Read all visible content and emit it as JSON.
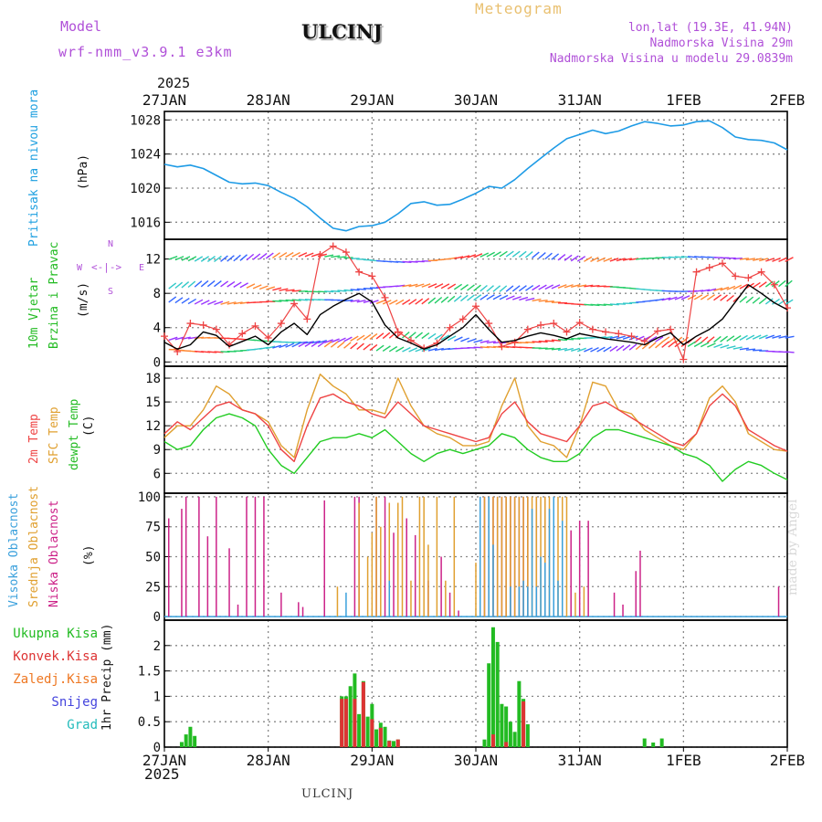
{
  "header": {
    "model_label": "Model",
    "model_name": "wrf-nmm_v3.9.1 e3km",
    "station": "ULCINJ",
    "title": "Meteogram",
    "lonlat": "lon,lat (19.3E, 41.94N)",
    "elevation": "Nadmorska Visina 29m",
    "model_elevation": "Nadmorska Visina u modelu 29.0839m"
  },
  "footer": {
    "station": "ULCINJ",
    "credit": "made by Angel"
  },
  "time_axis": {
    "year": "2025",
    "dates": [
      "27JAN",
      "28JAN",
      "29JAN",
      "30JAN",
      "31JAN",
      "1FEB",
      "2FEB"
    ],
    "range_hours": [
      0,
      144
    ]
  },
  "wind_compass": {
    "n": "N",
    "s": "S",
    "e": "E",
    "w": "W"
  },
  "colors": {
    "pressure": "#1e9be6",
    "wind_speed": "#000000",
    "gust": "#ee4444",
    "temp2m": "#ee4444",
    "sfc_temp": "#e0a030",
    "dewpt": "#22cc22",
    "cloud_high": "#3aa0dc",
    "cloud_mid": "#e0a030",
    "cloud_low": "#cc2288",
    "precip_total": "#22bb22",
    "precip_conv": "#dd3333",
    "precip_frozen": "#ee7722",
    "snow": "#4444dd",
    "graupel": "#22bbbb",
    "grid": "#888888"
  },
  "chart_data": [
    {
      "type": "line",
      "panel": "pressure",
      "ylabel_side": "Pritisak na nivou mora",
      "unit": "(hPa)",
      "ylim": [
        1014,
        1029
      ],
      "yticks": [
        1016,
        1020,
        1024,
        1028
      ],
      "series": [
        {
          "name": "Pritisak na nivou mora",
          "x": [
            0,
            3,
            6,
            9,
            12,
            15,
            18,
            21,
            24,
            27,
            30,
            33,
            36,
            39,
            42,
            45,
            48,
            51,
            54,
            57,
            60,
            63,
            66,
            69,
            72,
            75,
            78,
            81,
            84,
            87,
            90,
            93,
            96,
            99,
            102,
            105,
            108,
            111,
            114,
            117,
            120,
            123,
            126,
            129,
            132,
            135,
            138,
            141,
            144
          ],
          "values": [
            1022.8,
            1022.5,
            1022.7,
            1022.3,
            1021.5,
            1020.7,
            1020.5,
            1020.6,
            1020.3,
            1019.5,
            1018.8,
            1017.8,
            1016.5,
            1015.3,
            1015.0,
            1015.5,
            1015.6,
            1016.0,
            1017.0,
            1018.2,
            1018.4,
            1018.0,
            1018.1,
            1018.7,
            1019.4,
            1020.2,
            1020.0,
            1021.0,
            1022.3,
            1023.5,
            1024.7,
            1025.8,
            1026.3,
            1026.8,
            1026.4,
            1026.7,
            1027.3,
            1027.8,
            1027.6,
            1027.3,
            1027.4,
            1027.8,
            1027.9,
            1027.1,
            1026.0,
            1025.7,
            1025.6,
            1025.3,
            1024.5
          ]
        }
      ]
    },
    {
      "type": "line",
      "panel": "wind",
      "ylabel_side": [
        "10m Vjetar",
        "Brzina i Pravac"
      ],
      "unit": "(m/s)",
      "ylim": [
        -0.5,
        14.3
      ],
      "yticks": [
        0,
        4,
        8,
        12
      ],
      "series": [
        {
          "name": "10m Vjetar brzina",
          "x": [
            0,
            3,
            6,
            9,
            12,
            15,
            18,
            21,
            24,
            27,
            30,
            33,
            36,
            39,
            42,
            45,
            48,
            51,
            54,
            57,
            60,
            63,
            66,
            69,
            72,
            75,
            78,
            81,
            84,
            87,
            90,
            93,
            96,
            99,
            102,
            105,
            108,
            111,
            114,
            117,
            120,
            123,
            126,
            129,
            132,
            135,
            138,
            141,
            144
          ],
          "values": [
            2.3,
            1.5,
            2.0,
            3.5,
            3.1,
            1.8,
            2.4,
            3.0,
            2.0,
            3.5,
            4.5,
            3.2,
            5.5,
            6.5,
            7.3,
            8.0,
            7.0,
            4.3,
            2.8,
            2.2,
            1.5,
            2.0,
            3.0,
            4.0,
            5.5,
            3.8,
            2.3,
            2.5,
            3.0,
            3.4,
            3.1,
            2.7,
            3.3,
            3.0,
            2.7,
            2.5,
            2.3,
            2.0,
            2.8,
            3.4,
            2.0,
            3.0,
            3.8,
            5.0,
            7.0,
            9.0,
            8.0,
            6.9,
            6.1
          ]
        },
        {
          "name": "Udari vjetra",
          "x": [
            0,
            3,
            6,
            9,
            12,
            15,
            18,
            21,
            24,
            27,
            30,
            33,
            36,
            39,
            42,
            45,
            48,
            51,
            54,
            57,
            60,
            63,
            66,
            69,
            72,
            75,
            78,
            81,
            84,
            87,
            90,
            93,
            96,
            99,
            102,
            105,
            108,
            111,
            114,
            117,
            120,
            123,
            126,
            129,
            132,
            135,
            138,
            141,
            144
          ],
          "values": [
            3.0,
            1.2,
            4.5,
            4.3,
            3.8,
            2.0,
            3.3,
            4.2,
            2.8,
            4.5,
            6.8,
            5.0,
            12.5,
            13.5,
            12.8,
            10.5,
            10.0,
            7.5,
            3.5,
            2.5,
            1.6,
            2.2,
            4.0,
            5.0,
            6.5,
            4.5,
            1.8,
            2.3,
            3.8,
            4.3,
            4.5,
            3.5,
            4.6,
            3.8,
            3.5,
            3.3,
            3.0,
            2.4,
            3.6,
            3.8,
            0.3,
            10.5,
            11.0,
            11.5,
            10.0,
            9.8,
            10.5,
            9.0,
            6.3
          ]
        }
      ]
    },
    {
      "type": "line",
      "panel": "temperature",
      "ylabel_side": [
        "2m Temp",
        "SFC Temp",
        "dewpt Temp"
      ],
      "unit": "(C)",
      "ylim": [
        3.5,
        19.5
      ],
      "yticks": [
        6,
        9,
        12,
        15,
        18
      ],
      "series": [
        {
          "name": "2m Temp",
          "x": [
            0,
            3,
            6,
            9,
            12,
            15,
            18,
            21,
            24,
            27,
            30,
            33,
            36,
            39,
            42,
            45,
            48,
            51,
            54,
            57,
            60,
            63,
            66,
            69,
            72,
            75,
            78,
            81,
            84,
            87,
            90,
            93,
            96,
            99,
            102,
            105,
            108,
            111,
            114,
            117,
            120,
            123,
            126,
            129,
            132,
            135,
            138,
            141,
            144
          ],
          "values": [
            11.0,
            12.5,
            11.5,
            13.0,
            14.5,
            15.0,
            14.0,
            13.5,
            12.0,
            9.0,
            7.5,
            12.0,
            15.5,
            16.0,
            15.0,
            14.5,
            13.5,
            13.0,
            15.0,
            13.5,
            12.0,
            11.5,
            11.0,
            10.5,
            10.0,
            10.5,
            13.5,
            15.0,
            12.5,
            11.0,
            10.5,
            10.0,
            12.0,
            14.5,
            15.0,
            14.0,
            13.0,
            12.0,
            11.0,
            10.0,
            9.5,
            11.0,
            14.5,
            16.0,
            14.5,
            11.5,
            10.5,
            9.5,
            8.8
          ]
        },
        {
          "name": "SFC Temp",
          "x": [
            0,
            3,
            6,
            9,
            12,
            15,
            18,
            21,
            24,
            27,
            30,
            33,
            36,
            39,
            42,
            45,
            48,
            51,
            54,
            57,
            60,
            63,
            66,
            69,
            72,
            75,
            78,
            81,
            84,
            87,
            90,
            93,
            96,
            99,
            102,
            105,
            108,
            111,
            114,
            117,
            120,
            123,
            126,
            129,
            132,
            135,
            138,
            141,
            144
          ],
          "values": [
            10.5,
            12.0,
            12.0,
            14.0,
            17.0,
            16.0,
            14.0,
            13.5,
            12.5,
            9.5,
            8.0,
            14.0,
            18.5,
            17.0,
            16.0,
            14.0,
            14.0,
            13.5,
            18.0,
            14.5,
            12.0,
            11.0,
            10.5,
            9.5,
            9.5,
            10.0,
            14.5,
            18.0,
            12.0,
            10.0,
            9.5,
            8.0,
            12.0,
            17.5,
            17.0,
            14.0,
            13.5,
            11.5,
            10.5,
            9.5,
            9.0,
            11.0,
            15.5,
            17.0,
            15.0,
            11.0,
            10.0,
            9.0,
            8.8
          ]
        },
        {
          "name": "dewpt Temp",
          "x": [
            0,
            3,
            6,
            9,
            12,
            15,
            18,
            21,
            24,
            27,
            30,
            33,
            36,
            39,
            42,
            45,
            48,
            51,
            54,
            57,
            60,
            63,
            66,
            69,
            72,
            75,
            78,
            81,
            84,
            87,
            90,
            93,
            96,
            99,
            102,
            105,
            108,
            111,
            114,
            117,
            120,
            123,
            126,
            129,
            132,
            135,
            138,
            141,
            144
          ],
          "values": [
            10.0,
            9.0,
            9.5,
            11.5,
            13.0,
            13.5,
            13.0,
            12.0,
            9.0,
            7.0,
            6.0,
            8.0,
            10.0,
            10.5,
            10.5,
            11.0,
            10.5,
            11.5,
            10.0,
            8.5,
            7.5,
            8.5,
            9.0,
            8.5,
            9.0,
            9.5,
            11.0,
            10.5,
            9.0,
            8.0,
            7.5,
            7.5,
            8.5,
            10.5,
            11.5,
            11.5,
            11.0,
            10.5,
            10.0,
            9.5,
            8.5,
            8.0,
            7.0,
            5.0,
            6.5,
            7.5,
            7.0,
            6.0,
            5.2
          ]
        }
      ]
    },
    {
      "type": "bar",
      "panel": "clouds",
      "ylabel_side": [
        "Visoka Oblacnost",
        "Srednja Oblacnost",
        "Niska Oblacnost"
      ],
      "unit": "(%)",
      "ylim": [
        -3,
        103
      ],
      "yticks": [
        0,
        25,
        50,
        75,
        100
      ],
      "series": [
        {
          "name": "Niska Oblacnost",
          "x": [
            1,
            4,
            5,
            8,
            10,
            12,
            15,
            17,
            19,
            21,
            23,
            27,
            31,
            32,
            37,
            44,
            45,
            49,
            51,
            53,
            56,
            58,
            61,
            64,
            66,
            68,
            73,
            74,
            75,
            76,
            77,
            78,
            79,
            80,
            81,
            82,
            83,
            84,
            86,
            88,
            90,
            94,
            96,
            98,
            104,
            106,
            109,
            110,
            142
          ],
          "values": [
            82,
            90,
            100,
            100,
            67,
            100,
            57,
            10,
            100,
            100,
            100,
            20,
            12,
            8,
            97,
            100,
            100,
            100,
            100,
            70,
            82,
            68,
            30,
            50,
            20,
            5,
            60,
            100,
            100,
            100,
            100,
            100,
            100,
            100,
            100,
            100,
            100,
            100,
            100,
            100,
            100,
            72,
            80,
            80,
            20,
            10,
            38,
            55,
            25
          ]
        },
        {
          "name": "Srednja Oblacnost",
          "x": [
            40,
            45,
            47,
            48,
            49,
            50,
            52,
            54,
            55,
            57,
            59,
            60,
            61,
            63,
            65,
            67,
            72,
            73,
            74,
            75,
            76,
            77,
            78,
            79,
            80,
            81,
            82,
            83,
            84,
            85,
            86,
            87,
            88,
            89,
            90,
            91,
            92,
            93,
            95,
            97
          ],
          "values": [
            25,
            95,
            50,
            70,
            100,
            75,
            95,
            95,
            100,
            30,
            100,
            100,
            60,
            100,
            30,
            100,
            45,
            50,
            100,
            100,
            100,
            100,
            100,
            100,
            100,
            100,
            100,
            100,
            100,
            100,
            100,
            100,
            100,
            100,
            100,
            100,
            100,
            100,
            20,
            25
          ]
        },
        {
          "name": "Visoka Oblacnost",
          "x": [
            42,
            52,
            73,
            75,
            76,
            80,
            82,
            83,
            84,
            85,
            86,
            87,
            88,
            89,
            90,
            91,
            92
          ],
          "values": [
            20,
            30,
            100,
            100,
            60,
            25,
            25,
            30,
            25,
            90,
            25,
            50,
            45,
            90,
            100,
            30,
            80
          ]
        }
      ]
    },
    {
      "type": "bar",
      "panel": "precipitation",
      "ylabel_side": [
        "Ukupna Kisa",
        "Konvek.Kisa",
        "Zaledj.Kisa",
        "Snijeg",
        "Grad"
      ],
      "unit": "1hr Precip (mm)",
      "ylim": [
        0,
        2.5
      ],
      "yticks": [
        0,
        0.5,
        1,
        1.5,
        2
      ],
      "series": [
        {
          "name": "Ukupna Kisa",
          "x": [
            4,
            5,
            6,
            7,
            41,
            42,
            43,
            44,
            45,
            46,
            47,
            48,
            49,
            50,
            51,
            52,
            53,
            54,
            74,
            75,
            76,
            77,
            78,
            79,
            80,
            81,
            82,
            83,
            84,
            111,
            113,
            115
          ],
          "values": [
            0.1,
            0.25,
            0.4,
            0.22,
            1.0,
            1.0,
            1.2,
            1.45,
            0.65,
            1.3,
            0.6,
            0.85,
            0.35,
            0.48,
            0.4,
            0.13,
            0.12,
            0.15,
            0.15,
            1.65,
            2.36,
            2.07,
            0.85,
            0.8,
            0.5,
            0.3,
            1.3,
            0.95,
            0.45,
            0.17,
            0.09,
            0.17
          ]
        },
        {
          "name": "Konvek.Kisa",
          "x": [
            41,
            42,
            44,
            46,
            48,
            50,
            52,
            54,
            76,
            79,
            83
          ],
          "values": [
            0.95,
            0.95,
            0.95,
            1.28,
            0.55,
            0.38,
            0.12,
            0.15,
            0.25,
            0.1,
            0.9
          ]
        }
      ]
    }
  ]
}
